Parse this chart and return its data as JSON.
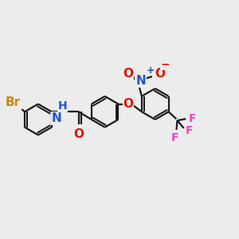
{
  "background_color": "#ececec",
  "bond_color": "#1a1a1a",
  "bond_width": 1.6,
  "atom_colors": {
    "Br": "#cc8800",
    "N_amide": "#2255cc",
    "N_nitro": "#2255cc",
    "O_ether": "#dd1100",
    "O_carbonyl": "#dd1100",
    "O_nitro": "#dd1100",
    "F": "#ee44cc",
    "plus": "#2255cc",
    "minus": "#dd1100"
  },
  "font_size_atom": 10,
  "font_size_small": 8,
  "figsize": [
    3.0,
    3.0
  ],
  "dpi": 100,
  "xlim": [
    0,
    12
  ],
  "ylim": [
    0,
    10
  ]
}
